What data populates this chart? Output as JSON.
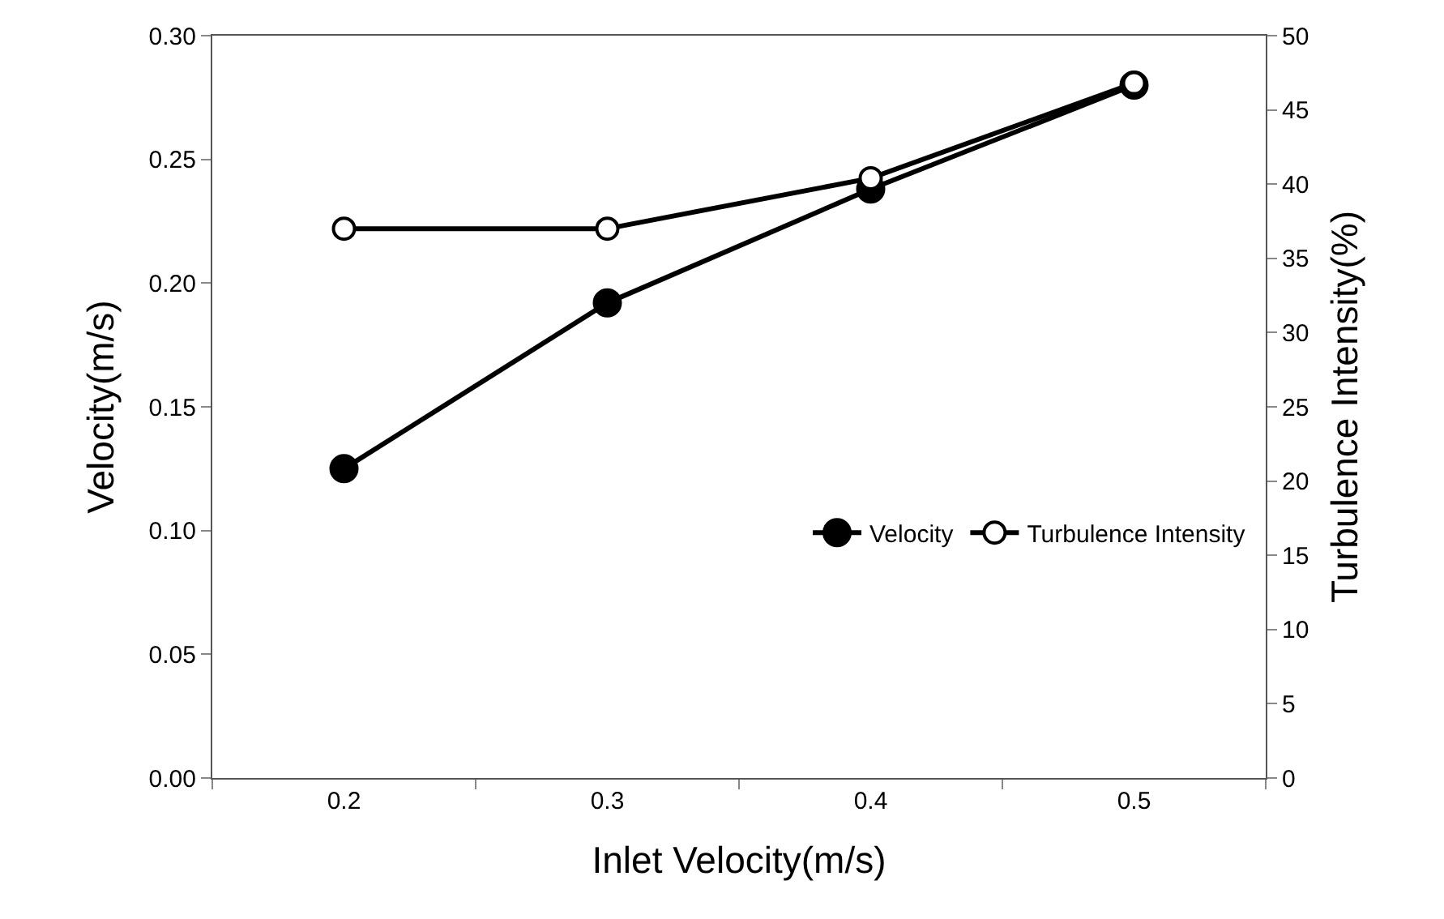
{
  "chart_data": {
    "type": "line",
    "xlabel": "Inlet Velocity(m/s)",
    "ylabel": "Velocity(m/s)",
    "y2label": "Turbulence Intensity(%)",
    "categories": [
      "0.2",
      "0.3",
      "0.4",
      "0.5"
    ],
    "series": [
      {
        "name": "Velocity",
        "color": "#000000",
        "values": [
          0.125,
          0.192,
          0.238,
          0.28
        ]
      },
      {
        "name": "Turbulence Intensity",
        "color": "#000000",
        "axis": "y2",
        "values": [
          37,
          37,
          40.4,
          46.8
        ]
      }
    ],
    "ylim": [
      0,
      0.3
    ],
    "yticks": [
      {
        "value": 0,
        "label": "0.00"
      },
      {
        "value": 0.05,
        "label": "0.05"
      },
      {
        "value": 0.1,
        "label": "0.10"
      },
      {
        "value": 0.15,
        "label": "0.15"
      },
      {
        "value": 0.2,
        "label": "0.20"
      },
      {
        "value": 0.25,
        "label": "0.25"
      },
      {
        "value": 0.3,
        "label": "0.30"
      }
    ],
    "y2lim": [
      0,
      50
    ],
    "y2ticks": [
      0,
      5,
      10,
      15,
      20,
      25,
      30,
      35,
      40,
      45,
      50
    ],
    "grid": false,
    "legend": "right",
    "marker": "circle",
    "line_style": "solid"
  }
}
